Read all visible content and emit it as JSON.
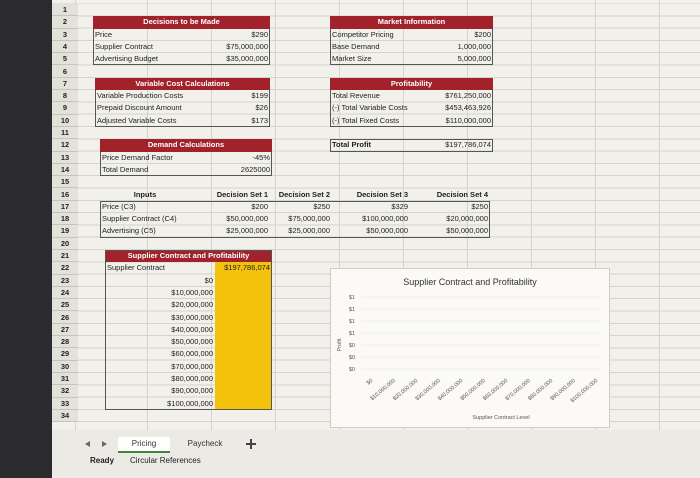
{
  "row_numbers": [
    1,
    2,
    3,
    4,
    5,
    6,
    7,
    8,
    9,
    10,
    11,
    12,
    13,
    14,
    15,
    16,
    17,
    18,
    19,
    20,
    21,
    22,
    23,
    24,
    25,
    26,
    27,
    28,
    29,
    30,
    31,
    32,
    33,
    34
  ],
  "decisions": {
    "title": "Decisions to be Made",
    "rows": [
      [
        "Price",
        "$290"
      ],
      [
        "Supplier Contract",
        "$75,000,000"
      ],
      [
        "Advertising Budget",
        "$35,000,000"
      ]
    ]
  },
  "market": {
    "title": "Market Information",
    "rows": [
      [
        "Competitor Pricing",
        "$200"
      ],
      [
        "Base Demand",
        "1,000,000"
      ],
      [
        "Market Size",
        "5,000,000"
      ]
    ]
  },
  "variable_cost": {
    "title": "Variable Cost Calculations",
    "rows": [
      [
        "Variable Production Costs",
        "$199"
      ],
      [
        "Prepaid Discount Amount",
        "$26"
      ],
      [
        "Adjusted Variable Costs",
        "$173"
      ]
    ]
  },
  "profitability": {
    "title": "Profitability",
    "rows": [
      [
        "Total Revenue",
        "$761,250,000"
      ],
      [
        "(-) Total Variable Costs",
        "$453,463,926"
      ],
      [
        "(-) Total Fixed Costs",
        "$110,000,000"
      ]
    ],
    "total": [
      "Total Profit",
      "$197,786,074"
    ]
  },
  "demand": {
    "title": "Demand Calculations",
    "rows": [
      [
        "Price Demand Factor",
        "-45%"
      ],
      [
        "Total Demand",
        "2625000"
      ]
    ]
  },
  "inputs": {
    "header": [
      "Inputs",
      "Decision Set 1",
      "Decision Set 2",
      "Decision Set 3",
      "Decision Set 4"
    ],
    "rows": [
      [
        "Price (C3)",
        "$200",
        "$250",
        "$329",
        "$250"
      ],
      [
        "Supplier Contract (C4)",
        "$50,000,000",
        "$75,000,000",
        "$100,000,000",
        "$20,000,000"
      ],
      [
        "Advertising (C5)",
        "$25,000,000",
        "$25,000,000",
        "$50,000,000",
        "$50,000,000"
      ]
    ]
  },
  "contract_table": {
    "title": "Supplier Contract and Profitability",
    "header": [
      "Supplier Contract",
      "$197,786,074"
    ],
    "rows": [
      "$0",
      "$10,000,000",
      "$20,000,000",
      "$30,000,000",
      "$40,000,000",
      "$50,000,000",
      "$60,000,000",
      "$70,000,000",
      "$80,000,000",
      "$90,000,000",
      "$100,000,000"
    ]
  },
  "chart": {
    "title": "Supplier Contract and Profitability",
    "y_axis_label": "Profit",
    "y_labels": [
      "$1",
      "$1",
      "$1",
      "$1",
      "$0",
      "$0",
      "$0"
    ],
    "x_labels": [
      "$0",
      "$10,000,000",
      "$20,000,000",
      "$30,000,000",
      "$40,000,000",
      "$50,000,000",
      "$60,000,000",
      "$70,000,000",
      "$80,000,000",
      "$90,000,000",
      "$100,000,000"
    ],
    "x_axis_label": "Supplier Contract Level"
  },
  "tabs": [
    "Pricing",
    "Paycheck"
  ],
  "status": [
    "Ready",
    "Circular References"
  ]
}
